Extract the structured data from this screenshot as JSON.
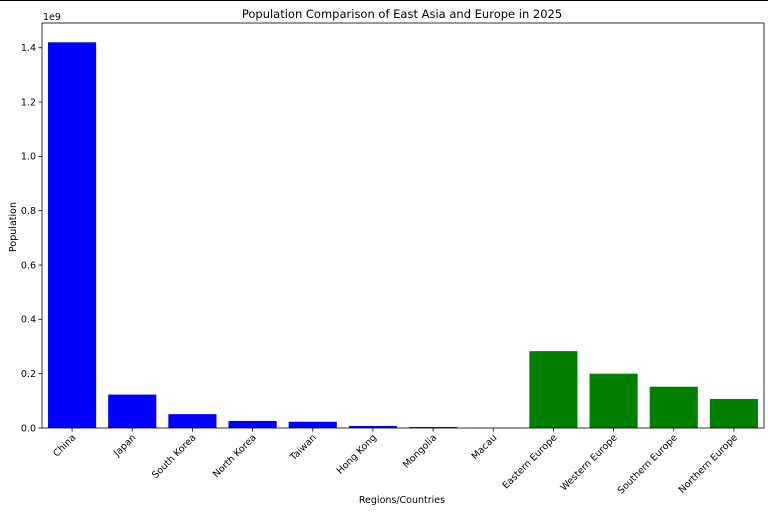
{
  "chart_data": {
    "type": "bar",
    "title": "Population Comparison of East Asia and Europe in 2025",
    "xlabel": "Regions/Countries",
    "ylabel": "Population",
    "offset_label": "1e9",
    "categories": [
      "China",
      "Japan",
      "South Korea",
      "North Korea",
      "Taiwan",
      "Hong Kong",
      "Mongolia",
      "Macau",
      "Eastern Europe",
      "Western Europe",
      "Southern Europe",
      "Northern Europe"
    ],
    "values": [
      1420000000,
      123000000,
      51000000,
      26000000,
      23000000,
      7500000,
      3500000,
      700000,
      283000000,
      200000000,
      152000000,
      107000000
    ],
    "colors": [
      "#0000ff",
      "#0000ff",
      "#0000ff",
      "#0000ff",
      "#0000ff",
      "#0000ff",
      "#0000ff",
      "#0000ff",
      "#008000",
      "#008000",
      "#008000",
      "#008000"
    ],
    "ylim": [
      0,
      1491000000
    ],
    "yticks": [
      0,
      200000000,
      400000000,
      600000000,
      800000000,
      1000000000,
      1200000000,
      1400000000
    ],
    "ytick_labels": [
      "0.0",
      "0.2",
      "0.4",
      "0.6",
      "0.8",
      "1.0",
      "1.2",
      "1.4"
    ],
    "grid": false,
    "legend": "none"
  }
}
